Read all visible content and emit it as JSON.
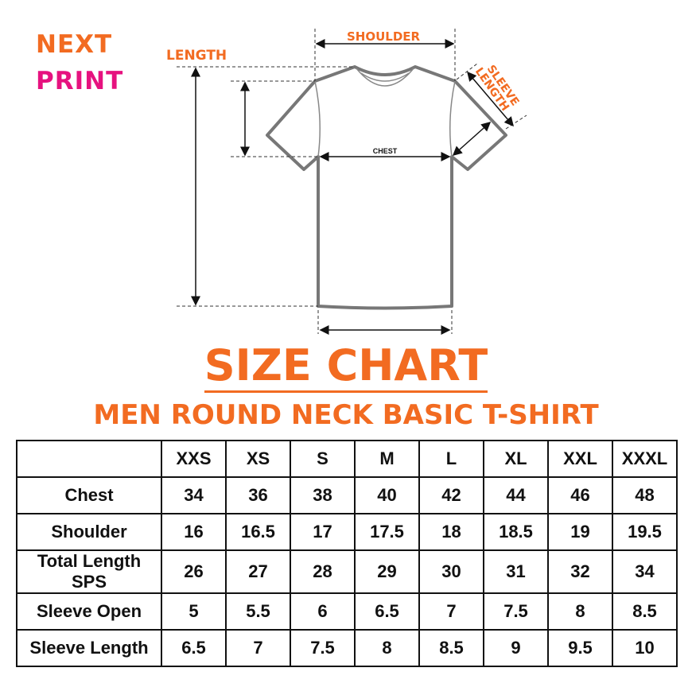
{
  "brand": {
    "line1": "NEXT",
    "line2": "PRINT",
    "colors": {
      "orange": "#f26b21",
      "pink": "#e6127f"
    }
  },
  "diagram": {
    "length": "LENGTH",
    "shoulder": "SHOULDER",
    "sleeve_line1": "SLEEVE",
    "sleeve_line2": "LENGTH",
    "chest": "CHEST"
  },
  "title": "SIZE CHART",
  "subtitle": "MEN ROUND NECK BASIC T-SHIRT",
  "table": {
    "sizes": [
      "XXS",
      "XS",
      "S",
      "M",
      "L",
      "XL",
      "XXL",
      "XXXL"
    ],
    "rows": [
      {
        "label": "Chest",
        "values": [
          "34",
          "36",
          "38",
          "40",
          "42",
          "44",
          "46",
          "48"
        ]
      },
      {
        "label": "Shoulder",
        "values": [
          "16",
          "16.5",
          "17",
          "17.5",
          "18",
          "18.5",
          "19",
          "19.5"
        ]
      },
      {
        "label": "Total Length SPS",
        "values": [
          "26",
          "27",
          "28",
          "29",
          "30",
          "31",
          "32",
          "34"
        ]
      },
      {
        "label": "Sleeve Open",
        "values": [
          "5",
          "5.5",
          "6",
          "6.5",
          "7",
          "7.5",
          "8",
          "8.5"
        ]
      },
      {
        "label": "Sleeve Length",
        "values": [
          "6.5",
          "7",
          "7.5",
          "8",
          "8.5",
          "9",
          "9.5",
          "10"
        ]
      }
    ]
  }
}
